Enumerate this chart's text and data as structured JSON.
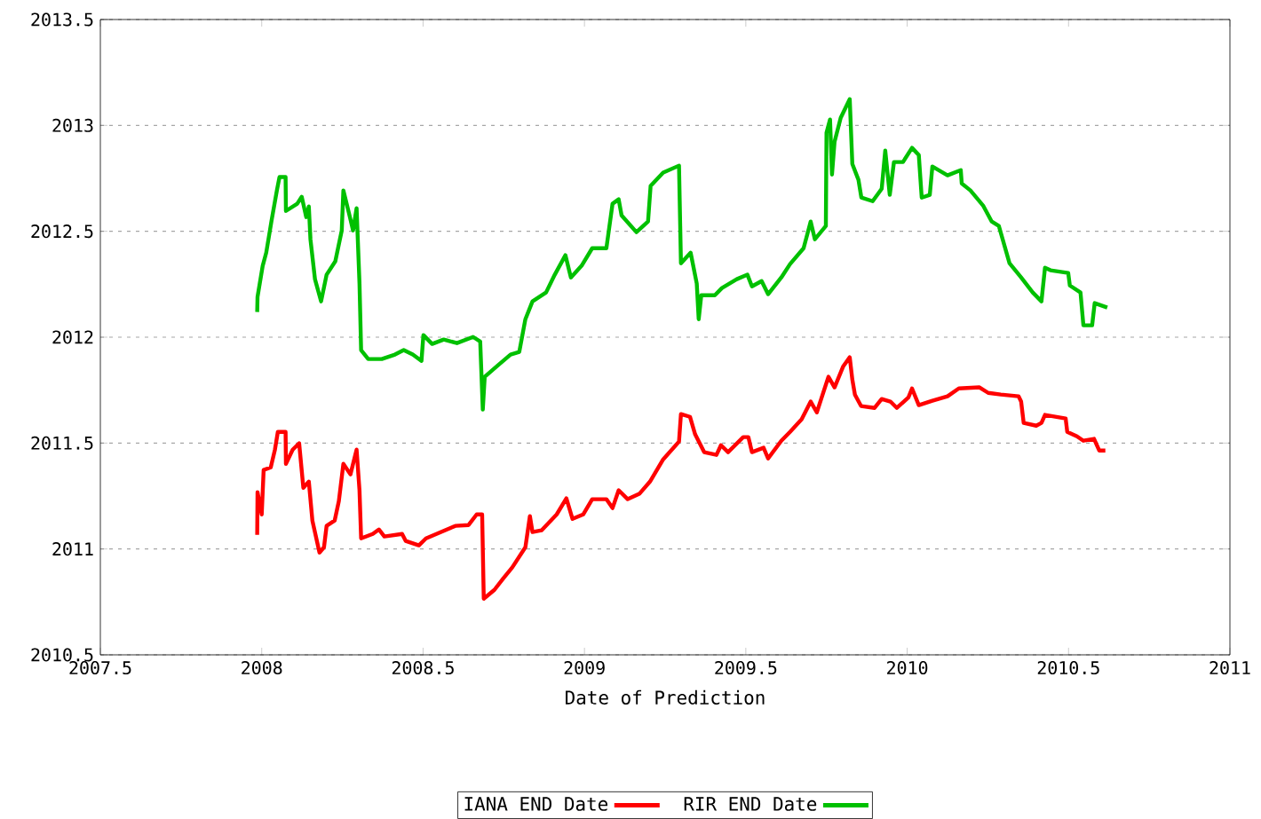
{
  "chart_data": {
    "type": "line",
    "xlabel": "Date of Prediction",
    "xlim": [
      2007.5,
      2011
    ],
    "xticks": [
      2007.5,
      2008,
      2008.5,
      2009,
      2009.5,
      2010,
      2010.5,
      2011
    ],
    "ylim": [
      2010.5,
      2013.5
    ],
    "yticks": [
      2010.5,
      2011,
      2011.5,
      2012,
      2012.5,
      2013,
      2013.5
    ],
    "grid": "y",
    "legend": "bottom",
    "marker": "none",
    "line_style": "solid",
    "series": [
      {
        "name": "IANA END Date",
        "color": "#ff0000",
        "x": [
          2007.986,
          2007.987,
          2008.0,
          2008.006,
          2008.028,
          2008.041,
          2008.05,
          2008.074,
          2008.075,
          2008.096,
          2008.116,
          2008.129,
          2008.146,
          2008.157,
          2008.179,
          2008.193,
          2008.201,
          2008.226,
          2008.239,
          2008.253,
          2008.275,
          2008.294,
          2008.303,
          2008.308,
          2008.344,
          2008.363,
          2008.38,
          2008.435,
          2008.446,
          2008.487,
          2008.509,
          2008.556,
          2008.6,
          2008.641,
          2008.666,
          2008.683,
          2008.688,
          2008.721,
          2008.749,
          2008.776,
          2008.817,
          2008.831,
          2008.839,
          2008.867,
          2008.914,
          2008.944,
          2008.963,
          2008.996,
          2009.024,
          2009.068,
          2009.087,
          2009.106,
          2009.134,
          2009.17,
          2009.203,
          2009.244,
          2009.293,
          2009.299,
          2009.327,
          2009.343,
          2009.371,
          2009.409,
          2009.423,
          2009.445,
          2009.492,
          2009.508,
          2009.519,
          2009.555,
          2009.569,
          2009.61,
          2009.637,
          2009.673,
          2009.701,
          2009.72,
          2009.756,
          2009.775,
          2009.802,
          2009.822,
          2009.83,
          2009.838,
          2009.857,
          2009.899,
          2009.921,
          2009.948,
          2009.968,
          2010.004,
          2010.015,
          2010.036,
          2010.078,
          2010.125,
          2010.16,
          2010.224,
          2010.251,
          2010.29,
          2010.345,
          2010.353,
          2010.361,
          2010.4,
          2010.416,
          2010.427,
          2010.491,
          2010.496,
          2010.526,
          2010.546,
          2010.579,
          2010.595,
          2010.614
        ],
        "values": [
          2011.067,
          2011.268,
          2011.163,
          2011.373,
          2011.385,
          2011.469,
          2011.553,
          2011.553,
          2011.402,
          2011.469,
          2011.499,
          2011.289,
          2011.318,
          2011.134,
          2010.983,
          2011.008,
          2011.109,
          2011.134,
          2011.226,
          2011.402,
          2011.352,
          2011.469,
          2011.277,
          2011.05,
          2011.071,
          2011.092,
          2011.059,
          2011.071,
          2011.038,
          2011.017,
          2011.05,
          2011.08,
          2011.109,
          2011.113,
          2011.163,
          2011.163,
          2010.765,
          2010.807,
          2010.862,
          2010.912,
          2011.008,
          2011.155,
          2011.08,
          2011.088,
          2011.163,
          2011.239,
          2011.142,
          2011.163,
          2011.235,
          2011.235,
          2011.193,
          2011.277,
          2011.235,
          2011.26,
          2011.318,
          2011.423,
          2011.507,
          2011.637,
          2011.624,
          2011.541,
          2011.457,
          2011.444,
          2011.49,
          2011.457,
          2011.528,
          2011.528,
          2011.457,
          2011.478,
          2011.427,
          2011.511,
          2011.553,
          2011.612,
          2011.696,
          2011.645,
          2011.813,
          2011.763,
          2011.863,
          2011.905,
          2011.8,
          2011.729,
          2011.675,
          2011.666,
          2011.708,
          2011.696,
          2011.666,
          2011.716,
          2011.758,
          2011.679,
          2011.7,
          2011.721,
          2011.758,
          2011.763,
          2011.737,
          2011.729,
          2011.721,
          2011.696,
          2011.595,
          2011.582,
          2011.595,
          2011.633,
          2011.616,
          2011.553,
          2011.532,
          2011.511,
          2011.52,
          2011.465,
          2011.465
        ]
      },
      {
        "name": "RIR END Date",
        "color": "#00c000",
        "x": [
          2007.986,
          2007.987,
          2008.003,
          2008.014,
          2008.03,
          2008.047,
          2008.055,
          2008.074,
          2008.075,
          2008.11,
          2008.124,
          2008.138,
          2008.146,
          2008.151,
          2008.165,
          2008.184,
          2008.201,
          2008.228,
          2008.248,
          2008.253,
          2008.27,
          2008.283,
          2008.294,
          2008.303,
          2008.308,
          2008.33,
          2008.372,
          2008.413,
          2008.44,
          2008.468,
          2008.495,
          2008.501,
          2008.528,
          2008.564,
          2008.605,
          2008.655,
          2008.677,
          2008.685,
          2008.691,
          2008.729,
          2008.771,
          2008.798,
          2008.817,
          2008.839,
          2008.881,
          2008.908,
          2008.941,
          2008.958,
          2008.991,
          2009.024,
          2009.068,
          2009.087,
          2009.106,
          2009.115,
          2009.161,
          2009.197,
          2009.205,
          2009.244,
          2009.293,
          2009.299,
          2009.329,
          2009.348,
          2009.354,
          2009.362,
          2009.404,
          2009.426,
          2009.472,
          2009.505,
          2009.519,
          2009.549,
          2009.569,
          2009.61,
          2009.637,
          2009.679,
          2009.701,
          2009.714,
          2009.748,
          2009.75,
          2009.761,
          2009.767,
          2009.775,
          2009.794,
          2009.822,
          2009.83,
          2009.849,
          2009.858,
          2009.893,
          2009.921,
          2009.932,
          2009.946,
          2009.959,
          2009.987,
          2010.015,
          2010.036,
          2010.045,
          2010.07,
          2010.078,
          2010.125,
          2010.166,
          2010.169,
          2010.196,
          2010.235,
          2010.262,
          2010.284,
          2010.317,
          2010.353,
          2010.389,
          2010.416,
          2010.427,
          2010.444,
          2010.499,
          2010.504,
          2010.537,
          2010.546,
          2010.573,
          2010.581,
          2010.62
        ],
        "values": [
          2012.119,
          2012.19,
          2012.337,
          2012.399,
          2012.546,
          2012.693,
          2012.756,
          2012.756,
          2012.596,
          2012.63,
          2012.663,
          2012.567,
          2012.617,
          2012.462,
          2012.274,
          2012.169,
          2012.295,
          2012.358,
          2012.504,
          2012.693,
          2012.588,
          2012.504,
          2012.609,
          2012.253,
          2011.939,
          2011.897,
          2011.897,
          2011.918,
          2011.939,
          2011.918,
          2011.888,
          2012.01,
          2011.968,
          2011.989,
          2011.972,
          2012.001,
          2011.98,
          2011.658,
          2011.813,
          2011.863,
          2011.918,
          2011.93,
          2012.085,
          2012.169,
          2012.211,
          2012.295,
          2012.387,
          2012.282,
          2012.337,
          2012.42,
          2012.42,
          2012.63,
          2012.651,
          2012.575,
          2012.496,
          2012.546,
          2012.714,
          2012.777,
          2012.81,
          2012.349,
          2012.399,
          2012.253,
          2012.085,
          2012.198,
          2012.198,
          2012.232,
          2012.274,
          2012.295,
          2012.24,
          2012.265,
          2012.203,
          2012.282,
          2012.345,
          2012.42,
          2012.546,
          2012.462,
          2012.525,
          2012.965,
          2013.028,
          2012.768,
          2012.923,
          2013.036,
          2013.124,
          2012.818,
          2012.743,
          2012.659,
          2012.642,
          2012.701,
          2012.881,
          2012.672,
          2012.827,
          2012.827,
          2012.894,
          2012.86,
          2012.659,
          2012.672,
          2012.806,
          2012.764,
          2012.789,
          2012.726,
          2012.693,
          2012.622,
          2012.546,
          2012.525,
          2012.349,
          2012.282,
          2012.211,
          2012.169,
          2012.328,
          2012.316,
          2012.303,
          2012.244,
          2012.211,
          2012.056,
          2012.056,
          2012.161,
          2012.14
        ]
      }
    ]
  }
}
